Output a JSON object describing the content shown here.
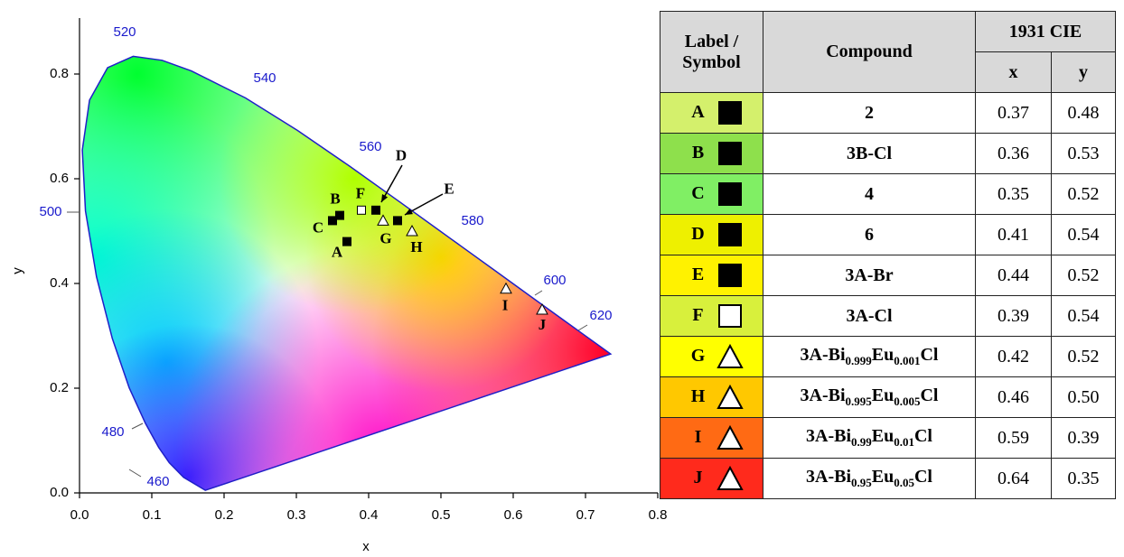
{
  "chart_data": {
    "type": "scatter",
    "x_label": "x",
    "y_label": "y",
    "xlim": [
      0,
      0.8
    ],
    "ylim": [
      0,
      0.9
    ],
    "xticks": [
      {
        "value": 0,
        "label": "0.0"
      },
      0.1,
      0.2,
      0.3,
      0.4,
      0.5,
      0.6,
      0.7,
      0.8
    ],
    "yticks": [
      {
        "value": 0,
        "label": "0.0"
      },
      0.2,
      0.4,
      0.6,
      0.8
    ],
    "wavelength_labels": [
      "460",
      "480",
      "500",
      "520",
      "540",
      "560",
      "580",
      "600",
      "620"
    ],
    "points": [
      {
        "label": "A",
        "x": 0.37,
        "y": 0.48,
        "marker": "square-filled"
      },
      {
        "label": "B",
        "x": 0.36,
        "y": 0.53,
        "marker": "square-filled"
      },
      {
        "label": "C",
        "x": 0.35,
        "y": 0.52,
        "marker": "square-filled"
      },
      {
        "label": "D",
        "x": 0.41,
        "y": 0.54,
        "marker": "square-filled"
      },
      {
        "label": "E",
        "x": 0.44,
        "y": 0.52,
        "marker": "square-filled"
      },
      {
        "label": "F",
        "x": 0.39,
        "y": 0.54,
        "marker": "square-open"
      },
      {
        "label": "G",
        "x": 0.42,
        "y": 0.52,
        "marker": "triangle-open"
      },
      {
        "label": "H",
        "x": 0.46,
        "y": 0.5,
        "marker": "triangle-open"
      },
      {
        "label": "I",
        "x": 0.59,
        "y": 0.39,
        "marker": "triangle-open"
      },
      {
        "label": "J",
        "x": 0.64,
        "y": 0.35,
        "marker": "triangle-open"
      }
    ]
  },
  "table": {
    "header": {
      "label_symbol": "Label / Symbol",
      "compound": "Compound",
      "cie": "1931 CIE",
      "x": "x",
      "y": "y"
    },
    "rows": [
      {
        "label": "A",
        "symbol": "square-filled",
        "color": "#d4f06c",
        "compound": [
          "2"
        ],
        "x": "0.37",
        "y": "0.48"
      },
      {
        "label": "B",
        "symbol": "square-filled",
        "color": "#8ee04c",
        "compound": [
          "3B-Cl"
        ],
        "x": "0.36",
        "y": "0.53"
      },
      {
        "label": "C",
        "symbol": "square-filled",
        "color": "#80ef64",
        "compound": [
          "4"
        ],
        "x": "0.35",
        "y": "0.52"
      },
      {
        "label": "D",
        "symbol": "square-filled",
        "color": "#eef000",
        "compound": [
          "6"
        ],
        "x": "0.41",
        "y": "0.54"
      },
      {
        "label": "E",
        "symbol": "square-filled",
        "color": "#fff200",
        "compound": [
          "3A-Br"
        ],
        "x": "0.44",
        "y": "0.52"
      },
      {
        "label": "F",
        "symbol": "square-open",
        "color": "#d8f03c",
        "compound": [
          "3A-Cl"
        ],
        "x": "0.39",
        "y": "0.54"
      },
      {
        "label": "G",
        "symbol": "triangle-open",
        "color": "#ffff00",
        "compound": [
          "3A-Bi",
          "0.999",
          "Eu",
          "0.001",
          "Cl"
        ],
        "x": "0.42",
        "y": "0.52"
      },
      {
        "label": "H",
        "symbol": "triangle-open",
        "color": "#ffc800",
        "compound": [
          "3A-Bi",
          "0.995",
          "Eu",
          "0.005",
          "Cl"
        ],
        "x": "0.46",
        "y": "0.50"
      },
      {
        "label": "I",
        "symbol": "triangle-open",
        "color": "#ff6a14",
        "compound": [
          "3A-Bi",
          "0.99",
          "Eu",
          "0.01",
          "Cl"
        ],
        "x": "0.59",
        "y": "0.39"
      },
      {
        "label": "J",
        "symbol": "triangle-open",
        "color": "#ff2a1c",
        "compound": [
          "3A-Bi",
          "0.95",
          "Eu",
          "0.05",
          "Cl"
        ],
        "x": "0.64",
        "y": "0.35"
      }
    ]
  }
}
